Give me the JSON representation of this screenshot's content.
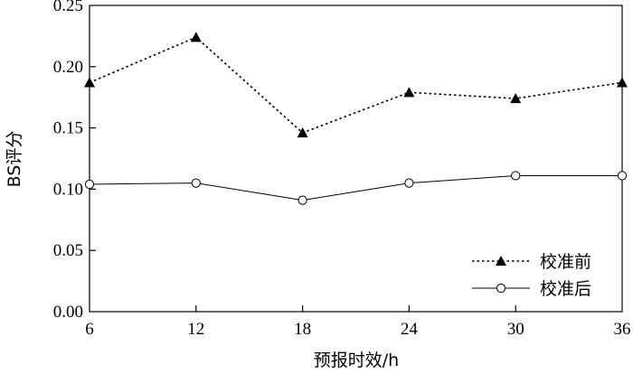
{
  "chart_data": {
    "type": "line",
    "x": [
      6,
      12,
      18,
      24,
      30,
      36
    ],
    "xlabel": "预报时效/h",
    "ylabel": "BS评分",
    "xlim": [
      6,
      36
    ],
    "ylim": [
      0,
      0.25
    ],
    "x_ticks": [
      "6",
      "12",
      "18",
      "24",
      "30",
      "36"
    ],
    "y_ticks": [
      "0.00",
      "0.05",
      "0.10",
      "0.15",
      "0.20",
      "0.25"
    ],
    "grid": false,
    "legend_position": "bottom-right",
    "series": [
      {
        "name": "校准前",
        "values": [
          0.187,
          0.224,
          0.146,
          0.179,
          0.174,
          0.187
        ],
        "line_style": "dotted",
        "marker": "filled-triangle",
        "color": "#000000"
      },
      {
        "name": "校准后",
        "values": [
          0.104,
          0.105,
          0.091,
          0.105,
          0.111,
          0.111
        ],
        "line_style": "solid",
        "marker": "open-circle",
        "color": "#000000"
      }
    ]
  }
}
